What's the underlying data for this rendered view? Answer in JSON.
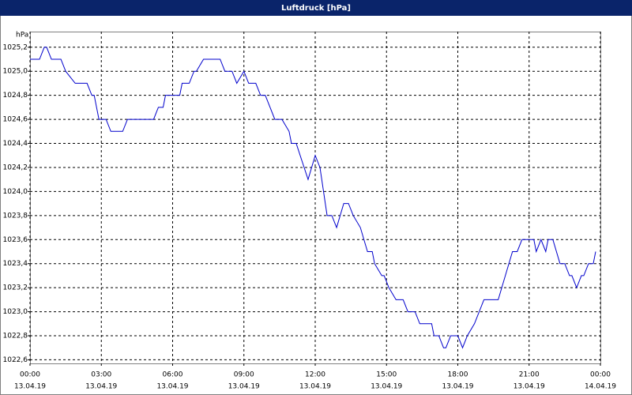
{
  "chart_data": {
    "type": "line",
    "title": "Luftdruck [hPa]",
    "y_label": "hPa",
    "x": [
      0,
      0.4,
      0.6,
      0.7,
      0.9,
      1.3,
      1.5,
      1.9,
      2.4,
      2.6,
      2.7,
      2.9,
      3.2,
      3.4,
      3.9,
      4.1,
      5.2,
      5.4,
      5.6,
      5.7,
      6.3,
      6.4,
      6.7,
      6.9,
      7.0,
      7.3,
      8.0,
      8.2,
      8.5,
      8.7,
      9.0,
      9.2,
      9.5,
      9.7,
      9.9,
      10.1,
      10.3,
      10.6,
      10.9,
      11.0,
      11.2,
      11.7,
      12.0,
      12.2,
      12.5,
      12.7,
      12.9,
      13.2,
      13.4,
      13.6,
      13.9,
      14.2,
      14.4,
      14.5,
      14.8,
      14.9,
      15.1,
      15.4,
      15.7,
      15.9,
      16.2,
      16.4,
      16.9,
      17.0,
      17.2,
      17.4,
      17.5,
      17.7,
      18.0,
      18.2,
      18.4,
      18.7,
      19.1,
      19.7,
      20.0,
      20.3,
      20.5,
      20.7,
      21.2,
      21.3,
      21.5,
      21.7,
      21.8,
      22.0,
      22.3,
      22.5,
      22.7,
      22.8,
      23.0,
      23.2,
      23.3,
      23.5,
      23.7,
      23.8
    ],
    "series": [
      {
        "name": "Luftdruck",
        "color": "#0000cc",
        "values": [
          1025.1,
          1025.1,
          1025.2,
          1025.2,
          1025.1,
          1025.1,
          1025.0,
          1024.9,
          1024.9,
          1024.8,
          1024.8,
          1024.6,
          1024.6,
          1024.5,
          1024.5,
          1024.6,
          1024.6,
          1024.7,
          1024.7,
          1024.8,
          1024.8,
          1024.9,
          1024.9,
          1025.0,
          1025.0,
          1025.1,
          1025.1,
          1025.0,
          1025.0,
          1024.9,
          1025.0,
          1024.9,
          1024.9,
          1024.8,
          1024.8,
          1024.7,
          1024.6,
          1024.6,
          1024.5,
          1024.4,
          1024.4,
          1024.1,
          1024.3,
          1024.2,
          1023.8,
          1023.8,
          1023.7,
          1023.9,
          1023.9,
          1023.8,
          1023.7,
          1023.5,
          1023.5,
          1023.4,
          1023.3,
          1023.3,
          1023.2,
          1023.1,
          1023.1,
          1023.0,
          1023.0,
          1022.9,
          1022.9,
          1022.8,
          1022.8,
          1022.7,
          1022.7,
          1022.8,
          1022.8,
          1022.7,
          1022.8,
          1022.9,
          1023.1,
          1023.1,
          1023.3,
          1023.5,
          1023.5,
          1023.6,
          1023.6,
          1023.5,
          1023.6,
          1023.5,
          1023.6,
          1023.6,
          1023.4,
          1023.4,
          1023.3,
          1023.3,
          1023.2,
          1023.3,
          1023.3,
          1023.4,
          1023.4,
          1023.5
        ]
      }
    ],
    "xlim": [
      0,
      24
    ],
    "xticks": [
      {
        "value": 0,
        "label": "00:00"
      },
      {
        "value": 3,
        "label": "03:00"
      },
      {
        "value": 6,
        "label": "06:00"
      },
      {
        "value": 9,
        "label": "09:00"
      },
      {
        "value": 12,
        "label": "12:00"
      },
      {
        "value": 15,
        "label": "15:00"
      },
      {
        "value": 18,
        "label": "18:00"
      },
      {
        "value": 21,
        "label": "21:00"
      },
      {
        "value": 24,
        "label": "00:00"
      }
    ],
    "xtick_dates": [
      "13.04.19",
      "13.04.19",
      "13.04.19",
      "13.04.19",
      "13.04.19",
      "13.04.19",
      "13.04.19",
      "13.04.19",
      "14.04.19"
    ],
    "ylim": [
      1022.57,
      1025.33
    ],
    "yticks": [
      {
        "value": 1022.6,
        "label": "1022,6"
      },
      {
        "value": 1022.8,
        "label": "1022,8"
      },
      {
        "value": 1023.0,
        "label": "1023,0"
      },
      {
        "value": 1023.2,
        "label": "1023,2"
      },
      {
        "value": 1023.4,
        "label": "1023,4"
      },
      {
        "value": 1023.6,
        "label": "1023,6"
      },
      {
        "value": 1023.8,
        "label": "1023,8"
      },
      {
        "value": 1024.0,
        "label": "1024,0"
      },
      {
        "value": 1024.2,
        "label": "1024,2"
      },
      {
        "value": 1024.4,
        "label": "1024,4"
      },
      {
        "value": 1024.6,
        "label": "1024,6"
      },
      {
        "value": 1024.8,
        "label": "1024,8"
      },
      {
        "value": 1025.0,
        "label": "1025,0"
      },
      {
        "value": 1025.2,
        "label": "1025,2"
      }
    ],
    "grid": true
  }
}
